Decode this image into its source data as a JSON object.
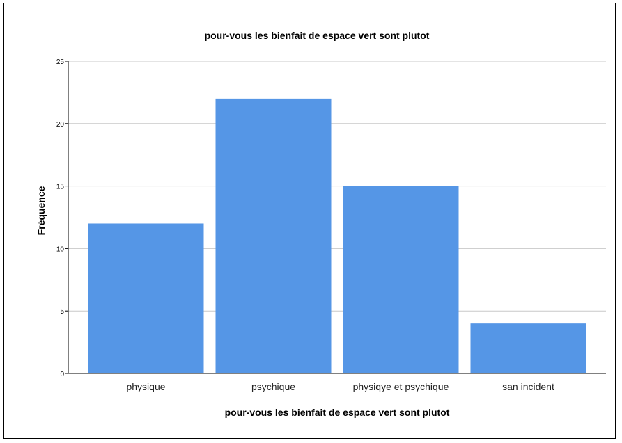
{
  "chart_data": {
    "type": "bar",
    "title": "pour-vous les bienfait de espace vert sont plutot",
    "xlabel": "pour-vous les bienfait de espace vert sont plutot",
    "ylabel": "Fréquence",
    "categories": [
      "physique",
      "psychique",
      "physiqye et psychique",
      "san incident"
    ],
    "values": [
      12,
      22,
      15,
      4
    ],
    "ylim": [
      0,
      25
    ],
    "yticks": [
      0,
      5,
      10,
      15,
      20,
      25
    ],
    "grid": true,
    "bar_color": "#5596e6",
    "grid_color": "#c8c8c8"
  }
}
